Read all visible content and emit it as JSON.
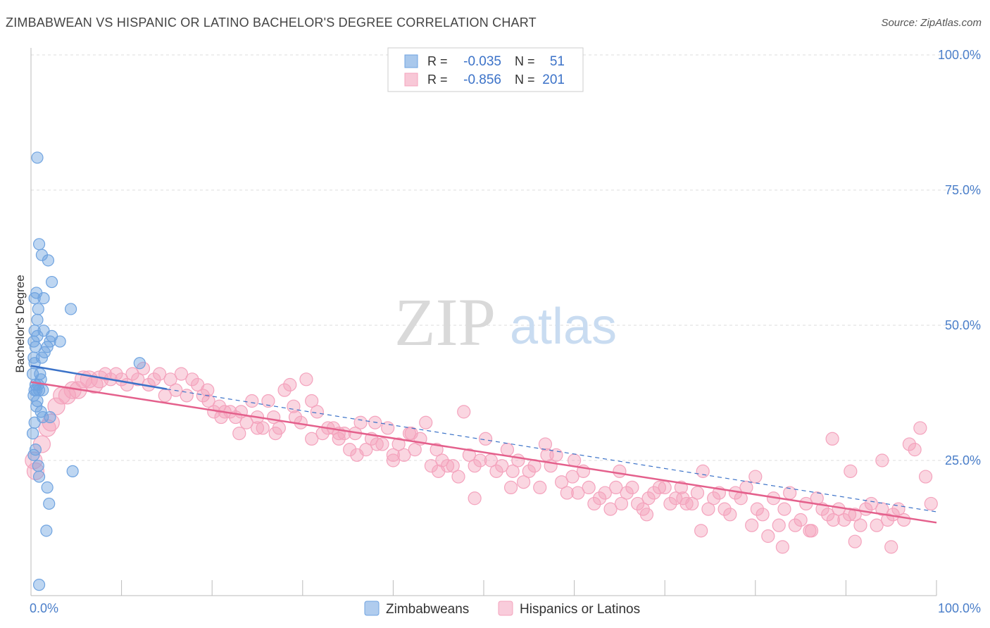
{
  "header": {
    "title": "ZIMBABWEAN VS HISPANIC OR LATINO BACHELOR'S DEGREE CORRELATION CHART",
    "source": "Source: ZipAtlas.com"
  },
  "watermark": {
    "zip": "ZIP",
    "atlas": "atlas"
  },
  "chart_data": {
    "type": "scatter",
    "xlabel": "",
    "ylabel": "Bachelor's Degree",
    "xlim": [
      0,
      100
    ],
    "ylim": [
      0,
      100
    ],
    "x_tick_labels": [
      "0.0%",
      "100.0%"
    ],
    "y_ticks": [
      25,
      50,
      75,
      100
    ],
    "y_tick_labels": [
      "25.0%",
      "50.0%",
      "75.0%",
      "100.0%"
    ],
    "legend": [
      {
        "r_label": "R =",
        "r_value": "-0.035",
        "n_label": "N =",
        "n_value": "51"
      },
      {
        "r_label": "R =",
        "r_value": "-0.856",
        "n_label": "N =",
        "n_value": "201"
      }
    ],
    "series": [
      {
        "name": "Zimbabweans",
        "color": "#6fa3e0",
        "line_color": "#3b72c8",
        "trend": {
          "x0": 0,
          "y0": 42.5,
          "x1": 15,
          "y1": 38.2,
          "dash_to_x": 100,
          "dash_to_y": 15.5
        },
        "points": [
          [
            0.7,
            81
          ],
          [
            0.9,
            65
          ],
          [
            1.2,
            63
          ],
          [
            1.9,
            62
          ],
          [
            2.3,
            58
          ],
          [
            0.6,
            56
          ],
          [
            0.4,
            55
          ],
          [
            1.4,
            55
          ],
          [
            4.4,
            53
          ],
          [
            0.7,
            51
          ],
          [
            0.4,
            49
          ],
          [
            1.4,
            49
          ],
          [
            0.7,
            48
          ],
          [
            2.3,
            48
          ],
          [
            2.1,
            47
          ],
          [
            0.3,
            47
          ],
          [
            3.2,
            47
          ],
          [
            1.8,
            46
          ],
          [
            0.5,
            46
          ],
          [
            0.3,
            44
          ],
          [
            1.2,
            44
          ],
          [
            12.0,
            43
          ],
          [
            0.4,
            43
          ],
          [
            0.2,
            41
          ],
          [
            1.1,
            40
          ],
          [
            0.8,
            39
          ],
          [
            0.5,
            39
          ],
          [
            1.3,
            38
          ],
          [
            0.6,
            38
          ],
          [
            0.9,
            38
          ],
          [
            0.3,
            37
          ],
          [
            0.7,
            36
          ],
          [
            1.3,
            33
          ],
          [
            2.1,
            33
          ],
          [
            0.4,
            32
          ],
          [
            0.5,
            27
          ],
          [
            0.3,
            26
          ],
          [
            0.8,
            24
          ],
          [
            4.6,
            23
          ],
          [
            0.9,
            22
          ],
          [
            1.8,
            20
          ],
          [
            2.0,
            17
          ],
          [
            1.7,
            12
          ],
          [
            0.9,
            2
          ],
          [
            0.6,
            35
          ],
          [
            1.0,
            41
          ],
          [
            0.2,
            30
          ],
          [
            1.5,
            45
          ],
          [
            0.8,
            53
          ],
          [
            0.4,
            38
          ],
          [
            1.1,
            34
          ]
        ]
      },
      {
        "name": "Hispanics or Latinos",
        "color": "#f4a3bd",
        "line_color": "#e4608c",
        "trend": {
          "x0": 0,
          "y0": 39.5,
          "x1": 100,
          "y1": 13.5
        },
        "points": [
          [
            0.3,
            25
          ],
          [
            0.5,
            23
          ],
          [
            1.2,
            28
          ],
          [
            1.8,
            31
          ],
          [
            2.2,
            32
          ],
          [
            2.8,
            35
          ],
          [
            3.4,
            37
          ],
          [
            4.0,
            37
          ],
          [
            4.6,
            38
          ],
          [
            5.2,
            38
          ],
          [
            5.8,
            40
          ],
          [
            6.4,
            40
          ],
          [
            7.0,
            39
          ],
          [
            7.6,
            40
          ],
          [
            8.2,
            41
          ],
          [
            8.8,
            40
          ],
          [
            9.4,
            41
          ],
          [
            10.0,
            40
          ],
          [
            10.6,
            39
          ],
          [
            11.2,
            41
          ],
          [
            11.8,
            40
          ],
          [
            12.4,
            42
          ],
          [
            13.0,
            39
          ],
          [
            13.6,
            40
          ],
          [
            14.2,
            41
          ],
          [
            14.8,
            37
          ],
          [
            15.4,
            40
          ],
          [
            16.0,
            38
          ],
          [
            16.6,
            41
          ],
          [
            17.2,
            37
          ],
          [
            17.8,
            40
          ],
          [
            18.4,
            39
          ],
          [
            19.0,
            37
          ],
          [
            19.6,
            36
          ],
          [
            20.2,
            34
          ],
          [
            20.8,
            35
          ],
          [
            21.4,
            34
          ],
          [
            22.0,
            34
          ],
          [
            22.6,
            33
          ],
          [
            23.2,
            34
          ],
          [
            23.8,
            32
          ],
          [
            24.4,
            36
          ],
          [
            25.0,
            33
          ],
          [
            25.6,
            31
          ],
          [
            26.2,
            36
          ],
          [
            26.8,
            33
          ],
          [
            27.4,
            31
          ],
          [
            28.0,
            38
          ],
          [
            28.6,
            39
          ],
          [
            29.2,
            33
          ],
          [
            29.8,
            32
          ],
          [
            30.4,
            40
          ],
          [
            31.0,
            29
          ],
          [
            31.6,
            34
          ],
          [
            32.2,
            30
          ],
          [
            32.8,
            31
          ],
          [
            33.4,
            31
          ],
          [
            34.0,
            29
          ],
          [
            34.6,
            30
          ],
          [
            35.2,
            27
          ],
          [
            35.8,
            30
          ],
          [
            36.4,
            32
          ],
          [
            37.0,
            27
          ],
          [
            37.6,
            29
          ],
          [
            38.2,
            28
          ],
          [
            38.8,
            28
          ],
          [
            39.4,
            31
          ],
          [
            40.0,
            26
          ],
          [
            40.6,
            28
          ],
          [
            41.2,
            26
          ],
          [
            41.8,
            30
          ],
          [
            42.4,
            27
          ],
          [
            43.0,
            29
          ],
          [
            43.6,
            32
          ],
          [
            44.2,
            24
          ],
          [
            44.8,
            27
          ],
          [
            45.4,
            25
          ],
          [
            46.0,
            24
          ],
          [
            46.6,
            24
          ],
          [
            47.2,
            22
          ],
          [
            47.8,
            34
          ],
          [
            48.4,
            26
          ],
          [
            49.0,
            24
          ],
          [
            49.6,
            25
          ],
          [
            50.2,
            29
          ],
          [
            50.8,
            25
          ],
          [
            51.4,
            23
          ],
          [
            52.0,
            24
          ],
          [
            52.6,
            27
          ],
          [
            53.2,
            23
          ],
          [
            53.8,
            25
          ],
          [
            54.4,
            21
          ],
          [
            55.0,
            23
          ],
          [
            55.6,
            24
          ],
          [
            56.2,
            20
          ],
          [
            56.8,
            28
          ],
          [
            57.4,
            24
          ],
          [
            58.0,
            26
          ],
          [
            58.6,
            21
          ],
          [
            59.2,
            19
          ],
          [
            59.8,
            22
          ],
          [
            60.4,
            19
          ],
          [
            61.0,
            23
          ],
          [
            61.6,
            20
          ],
          [
            62.2,
            17
          ],
          [
            62.8,
            18
          ],
          [
            63.4,
            19
          ],
          [
            64.0,
            16
          ],
          [
            64.6,
            20
          ],
          [
            65.2,
            17
          ],
          [
            65.8,
            19
          ],
          [
            66.4,
            20
          ],
          [
            67.0,
            17
          ],
          [
            67.6,
            16
          ],
          [
            68.2,
            18
          ],
          [
            68.8,
            19
          ],
          [
            69.4,
            20
          ],
          [
            70.0,
            20
          ],
          [
            70.6,
            17
          ],
          [
            71.2,
            18
          ],
          [
            71.8,
            20
          ],
          [
            72.4,
            17
          ],
          [
            73.0,
            17
          ],
          [
            73.6,
            19
          ],
          [
            74.2,
            23
          ],
          [
            74.8,
            16
          ],
          [
            75.4,
            18
          ],
          [
            76.0,
            19
          ],
          [
            76.6,
            16
          ],
          [
            77.2,
            15
          ],
          [
            77.8,
            19
          ],
          [
            78.4,
            18
          ],
          [
            79.0,
            20
          ],
          [
            79.6,
            13
          ],
          [
            80.2,
            16
          ],
          [
            80.8,
            15
          ],
          [
            81.4,
            11
          ],
          [
            82.0,
            18
          ],
          [
            82.6,
            13
          ],
          [
            83.2,
            16
          ],
          [
            83.8,
            19
          ],
          [
            84.4,
            13
          ],
          [
            85.0,
            14
          ],
          [
            85.6,
            17
          ],
          [
            86.2,
            12
          ],
          [
            86.8,
            18
          ],
          [
            87.4,
            16
          ],
          [
            88.0,
            15
          ],
          [
            88.6,
            14
          ],
          [
            89.2,
            16
          ],
          [
            89.8,
            14
          ],
          [
            90.4,
            15
          ],
          [
            91.0,
            15
          ],
          [
            91.6,
            13
          ],
          [
            92.2,
            16
          ],
          [
            92.8,
            17
          ],
          [
            93.4,
            13
          ],
          [
            94.0,
            16
          ],
          [
            94.6,
            14
          ],
          [
            95.2,
            15
          ],
          [
            95.8,
            16
          ],
          [
            96.4,
            14
          ],
          [
            97.0,
            28
          ],
          [
            97.6,
            27
          ],
          [
            98.2,
            31
          ],
          [
            98.8,
            22
          ],
          [
            99.4,
            17
          ],
          [
            88.5,
            29
          ],
          [
            86.0,
            12
          ],
          [
            83.0,
            9
          ],
          [
            90.5,
            23
          ],
          [
            94.0,
            25
          ],
          [
            95.0,
            9
          ],
          [
            91.0,
            10
          ],
          [
            80.0,
            22
          ],
          [
            74.0,
            12
          ],
          [
            72.0,
            18
          ],
          [
            68.0,
            15
          ],
          [
            65.0,
            23
          ],
          [
            60.0,
            25
          ],
          [
            57.0,
            26
          ],
          [
            53.0,
            20
          ],
          [
            49.0,
            18
          ],
          [
            45.0,
            23
          ],
          [
            42.0,
            30
          ],
          [
            40.0,
            25
          ],
          [
            38.0,
            32
          ],
          [
            36.0,
            26
          ],
          [
            34.0,
            30
          ],
          [
            31.0,
            36
          ],
          [
            29.0,
            35
          ],
          [
            27.0,
            30
          ],
          [
            25.0,
            31
          ],
          [
            23.0,
            30
          ],
          [
            21.0,
            33
          ],
          [
            19.5,
            38
          ]
        ]
      }
    ]
  }
}
